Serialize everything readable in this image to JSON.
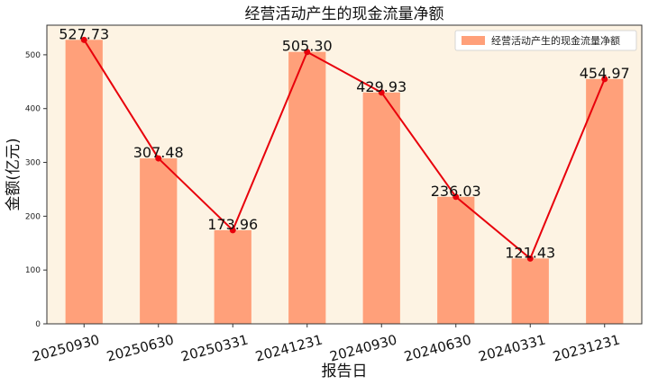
{
  "chart_data": {
    "type": "bar",
    "title": "经营活动产生的现金流量净额",
    "xlabel": "报告日",
    "ylabel": "金额(亿元)",
    "categories": [
      "20250930",
      "20250630",
      "20250331",
      "20241231",
      "20240930",
      "20240630",
      "20240331",
      "20231231"
    ],
    "series": [
      {
        "name": "经营活动产生的现金流量净额",
        "values": [
          527.73,
          307.48,
          173.96,
          505.3,
          429.93,
          236.03,
          121.43,
          454.97
        ]
      }
    ],
    "data_labels": [
      "527.73",
      "307.48",
      "173.96",
      "505.30",
      "429.93",
      "236.03",
      "121.43",
      "454.97"
    ],
    "yticks": [
      0,
      100,
      200,
      300,
      400,
      500
    ],
    "ylim": [
      0,
      555
    ],
    "grid": false,
    "legend_position": "top-right",
    "line_overlay": true
  },
  "colors": {
    "plot_background": "#fdf3e3",
    "bar": "#ffa07a",
    "line": "#e8000b",
    "axis": "#333333"
  }
}
